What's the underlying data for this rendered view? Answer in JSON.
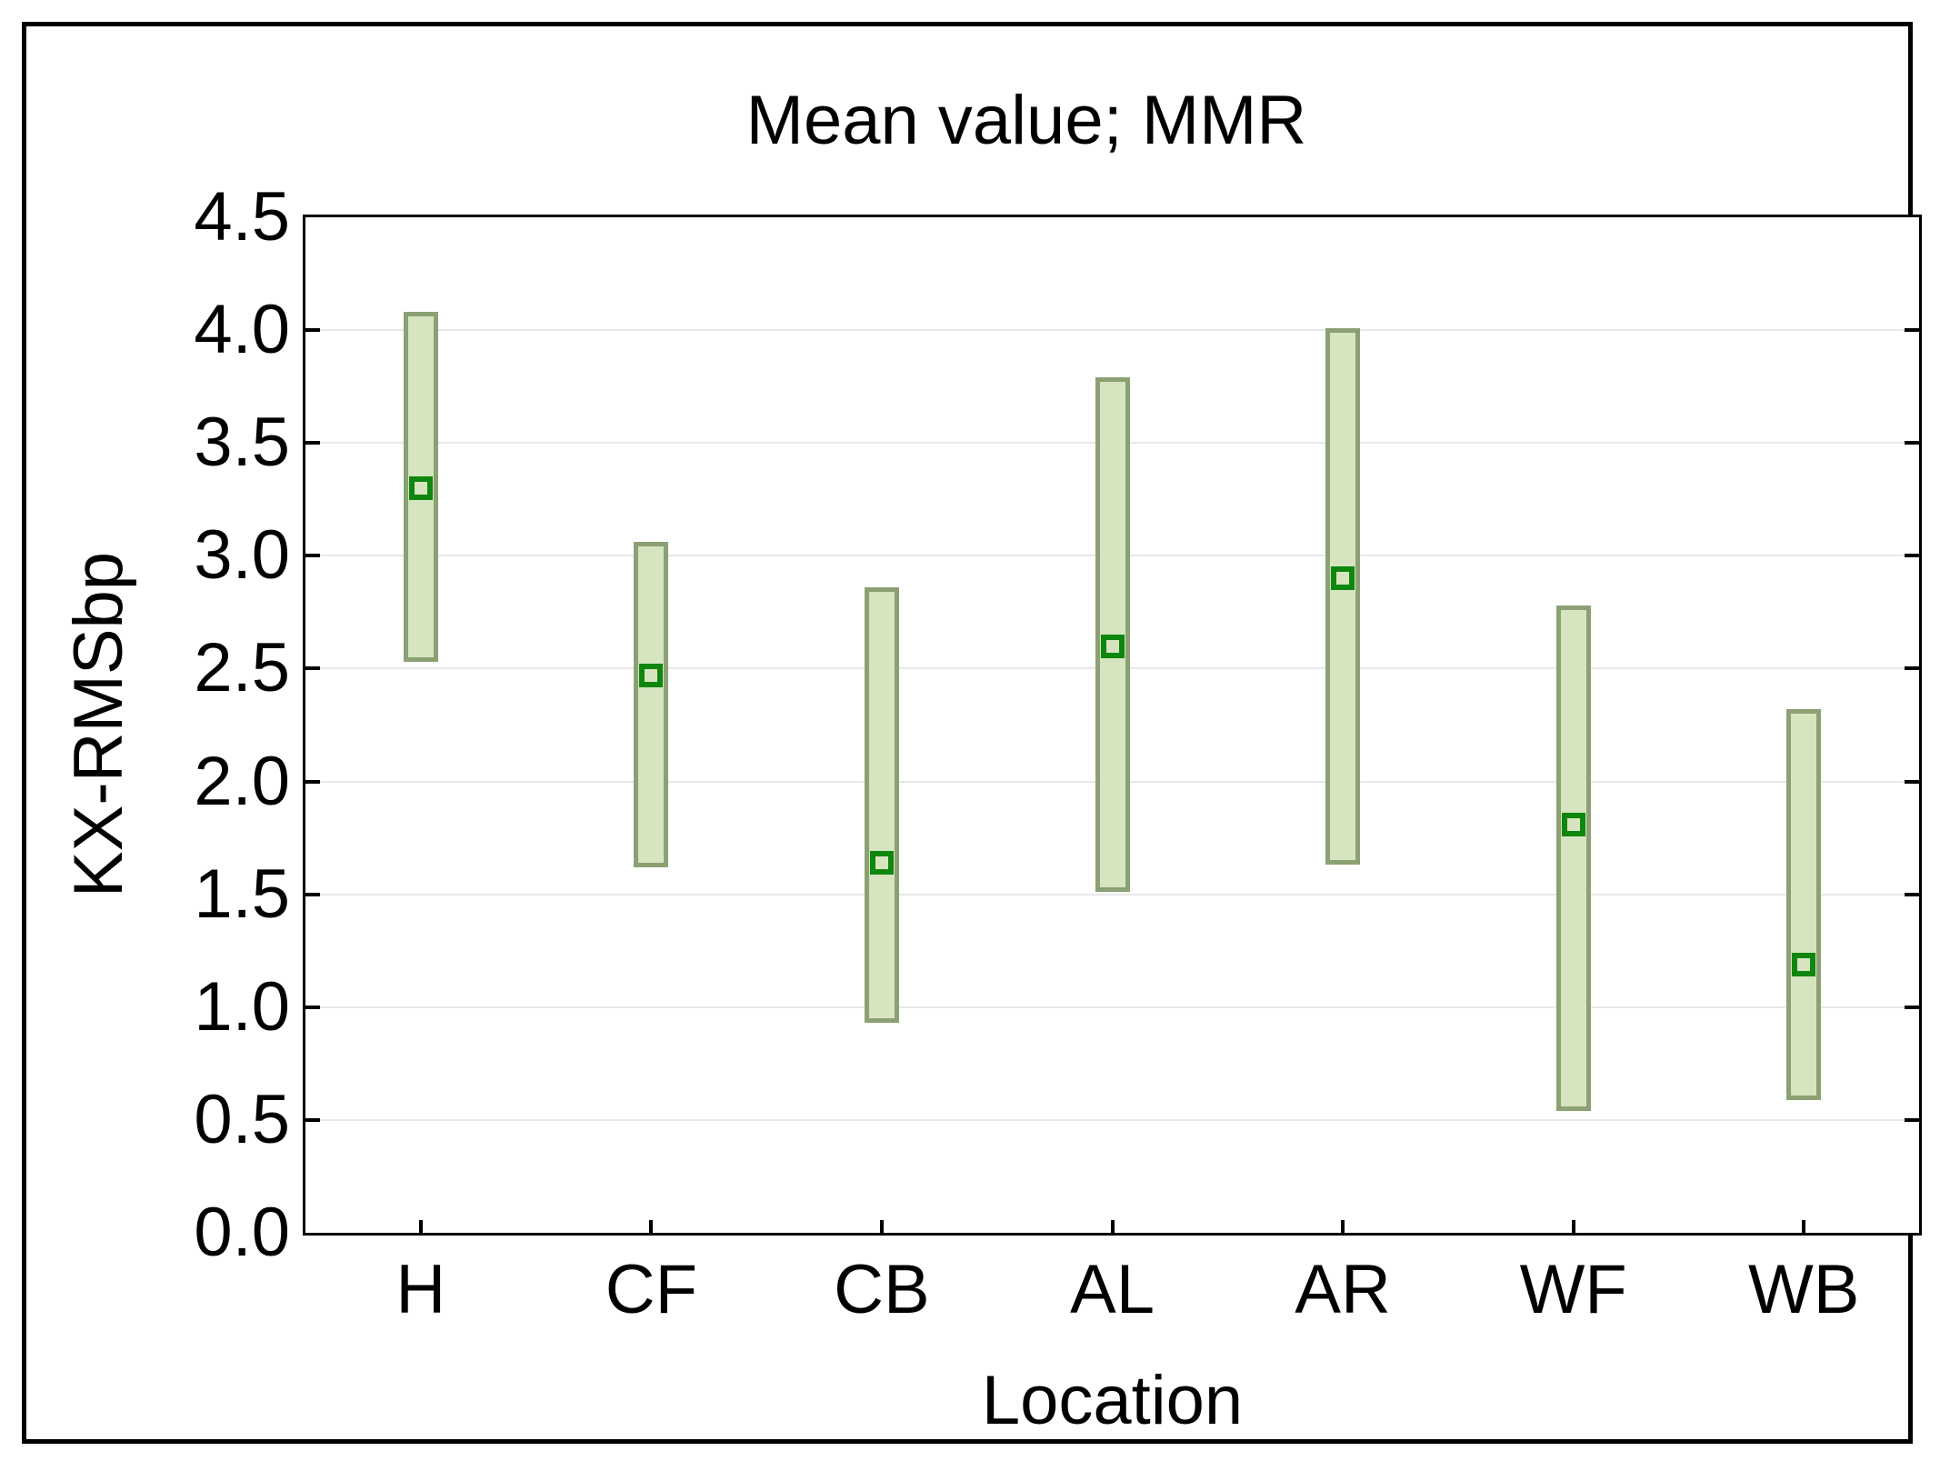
{
  "chart_data": {
    "type": "bar",
    "subtype": "mean-with-range-whisker-boxes",
    "title": "Mean value; MMR",
    "xlabel": "Location",
    "ylabel": "KX-RMSbp",
    "categories": [
      "H",
      "CF",
      "CB",
      "AL",
      "AR",
      "WF",
      "WB"
    ],
    "series": [
      {
        "name": "mean",
        "values": [
          3.3,
          2.47,
          1.64,
          2.6,
          2.9,
          1.81,
          1.19
        ]
      },
      {
        "name": "range_low",
        "values": [
          2.53,
          1.62,
          0.93,
          1.51,
          1.63,
          0.54,
          0.59
        ]
      },
      {
        "name": "range_high",
        "values": [
          4.08,
          3.06,
          2.86,
          3.79,
          4.01,
          2.78,
          2.32
        ]
      }
    ],
    "ylim": [
      0.0,
      4.5
    ],
    "ytick_step": 0.5,
    "ytick_labels": [
      "0.0",
      "0.5",
      "1.0",
      "1.5",
      "2.0",
      "2.5",
      "3.0",
      "3.5",
      "4.0",
      "4.5"
    ],
    "grid": true,
    "legend_position": "none"
  },
  "colors": {
    "bar_fill": "#d6e4bf",
    "bar_border": "#8ca173",
    "marker_border": "#0f870f",
    "marker_fill": "#d6e4bf",
    "gridline": "#e8e8e8",
    "axis": "#000000",
    "text": "#000000",
    "background": "#ffffff"
  }
}
